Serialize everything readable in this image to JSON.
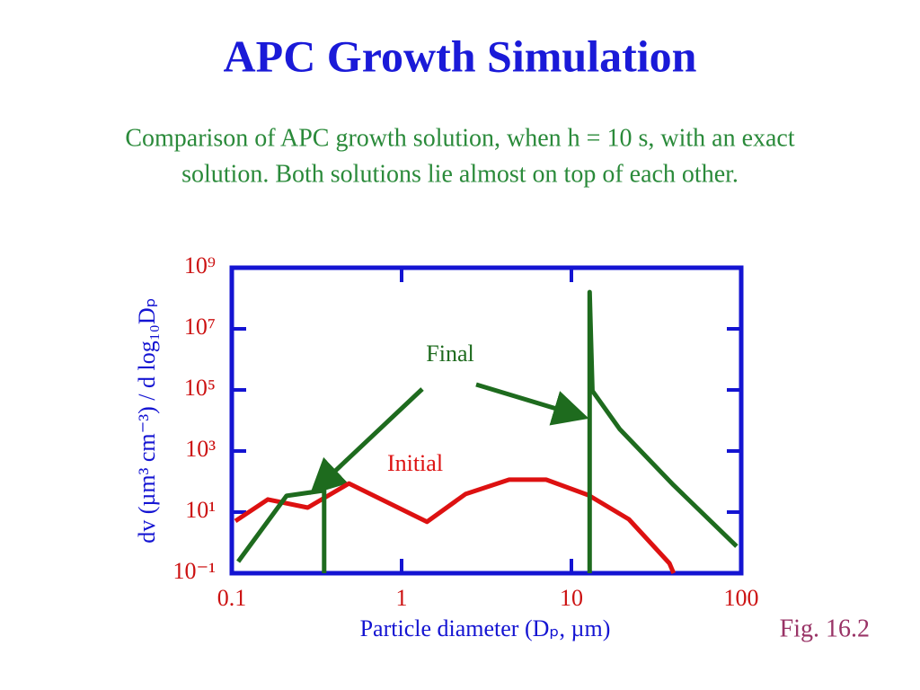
{
  "chart_data": {
    "type": "line",
    "title": "APC Growth Simulation",
    "subtitle": [
      "Comparison of APC growth solution, when h = 10 s, with an exact",
      "solution. Both solutions lie almost on top of each other."
    ],
    "xlabel": "Particle diameter (Dₚ, µm)",
    "ylabel": "dv (µm³ cm⁻³) / d log₁₀Dₚ",
    "xscale": "log",
    "yscale": "log",
    "xlim": [
      0.1,
      100
    ],
    "ylim": [
      0.1,
      1000000000
    ],
    "xticks": [
      0.1,
      1,
      10,
      100
    ],
    "yticks": [
      {
        "value": 0.1,
        "label": "10⁻¹"
      },
      {
        "value": 10,
        "label": "10¹"
      },
      {
        "value": 1000,
        "label": "10³"
      },
      {
        "value": 100000,
        "label": "10⁵"
      },
      {
        "value": 10000000,
        "label": "10⁷"
      },
      {
        "value": 1000000000,
        "label": "10⁹"
      }
    ],
    "axis_color": "#1414d2",
    "tick_color": "#cc1111",
    "series": [
      {
        "name": "Initial",
        "color": "#dd1111",
        "x": [
          0.105,
          0.163,
          0.28,
          0.49,
          1.41,
          2.38,
          4.3,
          7.1,
          12.6,
          21.8,
          37.8,
          40
        ],
        "values": [
          5.1,
          26,
          14,
          87,
          4.8,
          39,
          115,
          115,
          36,
          5.8,
          0.21,
          0.1
        ]
      },
      {
        "name": "Final",
        "color": "#1e6b1e",
        "x": [
          0.109,
          0.21,
          0.35,
          0.35,
          12.8,
          12.8,
          12.8,
          13.3,
          19.3,
          40,
          94
        ],
        "values": [
          0.24,
          34,
          51,
          0.1,
          null,
          0.1,
          160000000,
          93000,
          5100,
          76,
          0.76
        ]
      }
    ],
    "annotations": [
      "Fig. 16.2"
    ]
  }
}
